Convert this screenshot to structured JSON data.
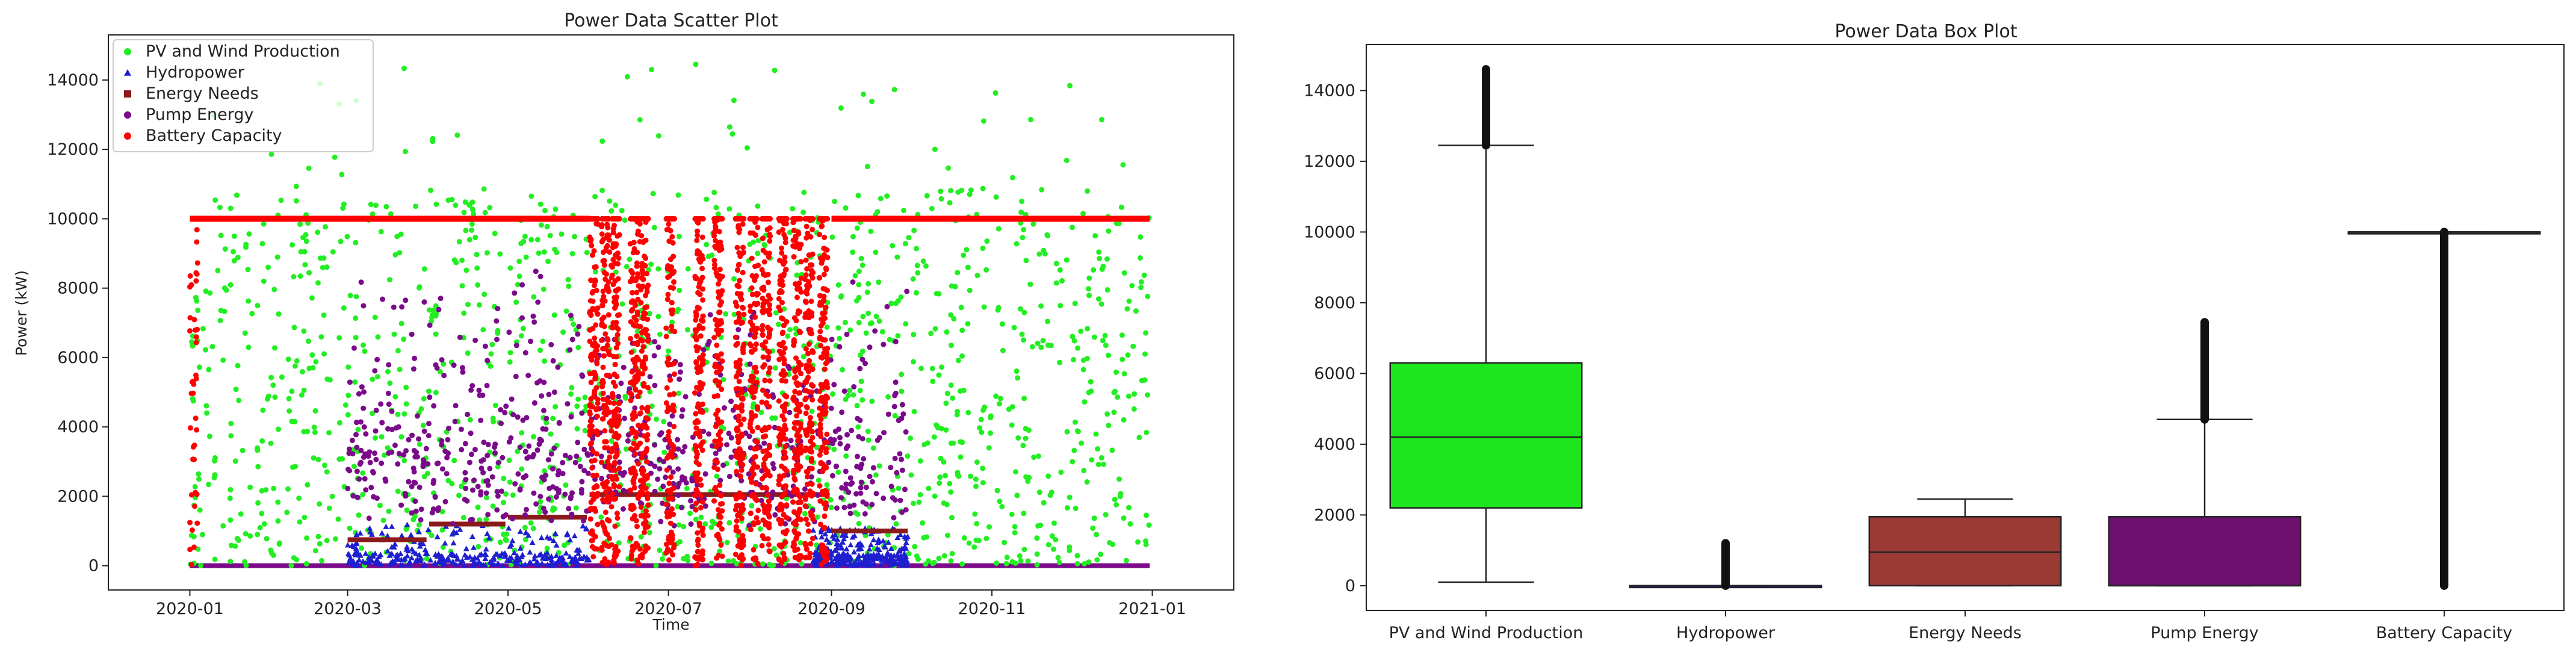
{
  "chart_data": [
    {
      "type": "scatter",
      "title": "Power Data Scatter Plot",
      "xlabel": "Time",
      "ylabel": "Power (kW)",
      "x_range": [
        "2019-12-01",
        "2021-02-01"
      ],
      "ylim": [
        -700,
        15300
      ],
      "x_ticks": [
        "2020-01",
        "2020-03",
        "2020-05",
        "2020-07",
        "2020-09",
        "2020-11",
        "2021-01"
      ],
      "y_ticks": [
        0,
        2000,
        4000,
        6000,
        8000,
        10000,
        12000,
        14000
      ],
      "legend_position": "top-left",
      "grid": false,
      "series": [
        {
          "name": "PV and Wind Production",
          "color": "#22ee22",
          "marker": "circle",
          "segments": [
            {
              "start": "2020-01-01",
              "end": "2020-12-31",
              "low": 0,
              "high": 14500
            }
          ]
        },
        {
          "name": "Hydropower",
          "color": "#1f1fd0",
          "marker": "triangle",
          "segments": [
            {
              "start": "2020-03-01",
              "end": "2020-06-01",
              "low": 0,
              "high": 1200
            },
            {
              "start": "2020-08-25",
              "end": "2020-09-30",
              "low": 0,
              "high": 1100
            }
          ]
        },
        {
          "name": "Energy Needs",
          "color": "#8b1a1a",
          "marker": "square",
          "segments": [
            {
              "start": "2020-03-01",
              "end": "2020-03-31",
              "low": 700,
              "high": 800
            },
            {
              "start": "2020-04-01",
              "end": "2020-04-30",
              "low": 1150,
              "high": 1250
            },
            {
              "start": "2020-05-01",
              "end": "2020-05-31",
              "low": 1350,
              "high": 1450
            },
            {
              "start": "2020-06-01",
              "end": "2020-08-31",
              "low": 1700,
              "high": 2400
            },
            {
              "start": "2020-09-01",
              "end": "2020-09-30",
              "low": 950,
              "high": 1050
            }
          ]
        },
        {
          "name": "Pump Energy",
          "color": "#7a0a8a",
          "marker": "circle",
          "segments": [
            {
              "start": "2020-03-01",
              "end": "2020-09-30",
              "low": 1000,
              "high": 7400
            }
          ]
        },
        {
          "name": "Battery Capacity",
          "color": "#ff0000",
          "marker": "circle",
          "segments": [
            {
              "start": "2020-01-01",
              "end": "2020-06-01",
              "low": 10000,
              "high": 10000
            },
            {
              "start": "2020-06-01",
              "end": "2020-08-31",
              "low": 0,
              "high": 10000
            },
            {
              "start": "2020-09-01",
              "end": "2020-12-31",
              "low": 10000,
              "high": 10000
            }
          ]
        }
      ],
      "baseline": {
        "value": 0,
        "color": "#7a0a8a"
      }
    },
    {
      "type": "box",
      "title": "Power Data Box Plot",
      "ylim": [
        -700,
        15300
      ],
      "y_ticks": [
        0,
        2000,
        4000,
        6000,
        8000,
        10000,
        12000,
        14000
      ],
      "categories": [
        "PV and Wind Production",
        "Hydropower",
        "Energy Needs",
        "Pump Energy",
        "Battery Capacity"
      ],
      "boxes": [
        {
          "name": "PV and Wind Production",
          "color": "#1ee61e",
          "whisker_low": 100,
          "q1": 2200,
          "median": 4200,
          "q3": 6300,
          "whisker_high": 12450,
          "outliers_to": 14600
        },
        {
          "name": "Hydropower",
          "color": "#2323d8",
          "whisker_low": 0,
          "q1": 0,
          "median": 0,
          "q3": 0,
          "whisker_high": 0,
          "outliers_to": 1200
        },
        {
          "name": "Energy Needs",
          "color": "#9a3a35",
          "whisker_low": 0,
          "q1": 0,
          "median": 950,
          "q3": 1950,
          "whisker_high": 2450,
          "outliers_to": null
        },
        {
          "name": "Pump Energy",
          "color": "#6e106e",
          "whisker_low": 0,
          "q1": 0,
          "median": 0,
          "q3": 1950,
          "whisker_high": 4700,
          "outliers_to": 7450
        },
        {
          "name": "Battery Capacity",
          "color": "#444444",
          "whisker_low": 10000,
          "q1": 10000,
          "median": 10000,
          "q3": 10000,
          "whisker_high": 10000,
          "outliers_low": 0
        }
      ]
    }
  ]
}
